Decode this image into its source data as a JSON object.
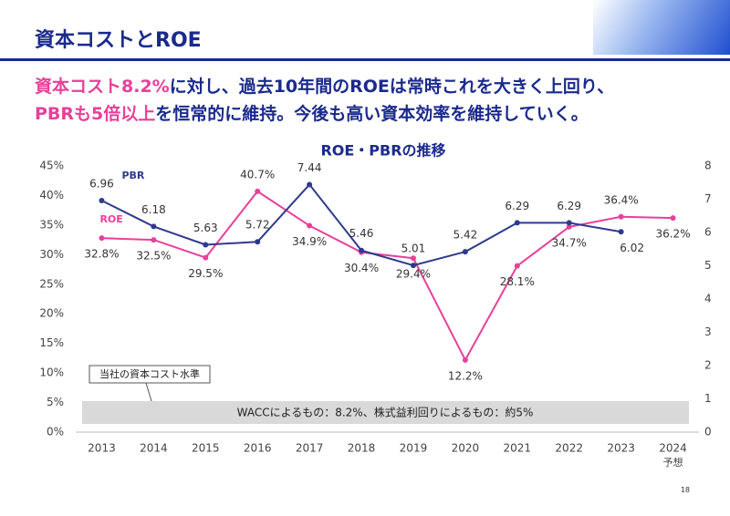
{
  "header": {
    "title": "資本コストとROE"
  },
  "headline": {
    "lines": [
      [
        {
          "text": "資本コスト8.2%",
          "emphasis": true
        },
        {
          "text": "に対し、過去10年間のROEは常時これを大きく上回り、",
          "emphasis": false
        }
      ],
      [
        {
          "text": "PBRも5倍以上",
          "emphasis": true
        },
        {
          "text": "を恒常的に維持。今後も高い資本効率を維持していく。",
          "emphasis": false
        }
      ]
    ]
  },
  "chart_data": {
    "type": "line",
    "title": "ROE・PBRの推移",
    "categories": [
      "2013",
      "2014",
      "2015",
      "2016",
      "2017",
      "2018",
      "2019",
      "2020",
      "2021",
      "2022",
      "2023",
      "2024"
    ],
    "category_note": {
      "index": 11,
      "text": "予想"
    },
    "series": [
      {
        "name": "ROE",
        "color": "#e8409a",
        "values": [
          32.8,
          32.5,
          29.5,
          40.7,
          34.9,
          30.4,
          29.4,
          12.2,
          28.1,
          34.7,
          36.4,
          36.2
        ],
        "value_labels": [
          "32.8%",
          "32.5%",
          "29.5%",
          "40.7%",
          "34.9%",
          "30.4%",
          "29.4%",
          "12.2%",
          "28.1%",
          "34.7%",
          "36.4%",
          "36.2%"
        ]
      },
      {
        "name": "PBR",
        "color": "#2e3a8c",
        "axis": "y2",
        "values": [
          6.96,
          6.18,
          5.63,
          5.72,
          7.44,
          5.46,
          5.01,
          5.42,
          6.29,
          6.29,
          6.02,
          null
        ]
      }
    ],
    "ylim": [
      0,
      45
    ],
    "yticks": [
      {
        "value": 0,
        "label": "0%"
      },
      {
        "value": 5,
        "label": "5%"
      },
      {
        "value": 10,
        "label": "10%"
      },
      {
        "value": 15,
        "label": "15%"
      },
      {
        "value": 20,
        "label": "20%"
      },
      {
        "value": 25,
        "label": "25%"
      },
      {
        "value": 30,
        "label": "30%"
      },
      {
        "value": 35,
        "label": "35%"
      },
      {
        "value": 40,
        "label": "40%"
      },
      {
        "value": 45,
        "label": "45%"
      }
    ],
    "y2lim": [
      0,
      8
    ],
    "y2ticks": [
      0,
      1,
      2,
      3,
      4,
      5,
      6,
      7,
      8
    ],
    "grid": false,
    "annotations": [
      "当社の資本コスト水準",
      "WACCによるもの：8.2%、株式益利回りによるもの：約5%"
    ]
  },
  "footer": {
    "page_number": "18"
  }
}
